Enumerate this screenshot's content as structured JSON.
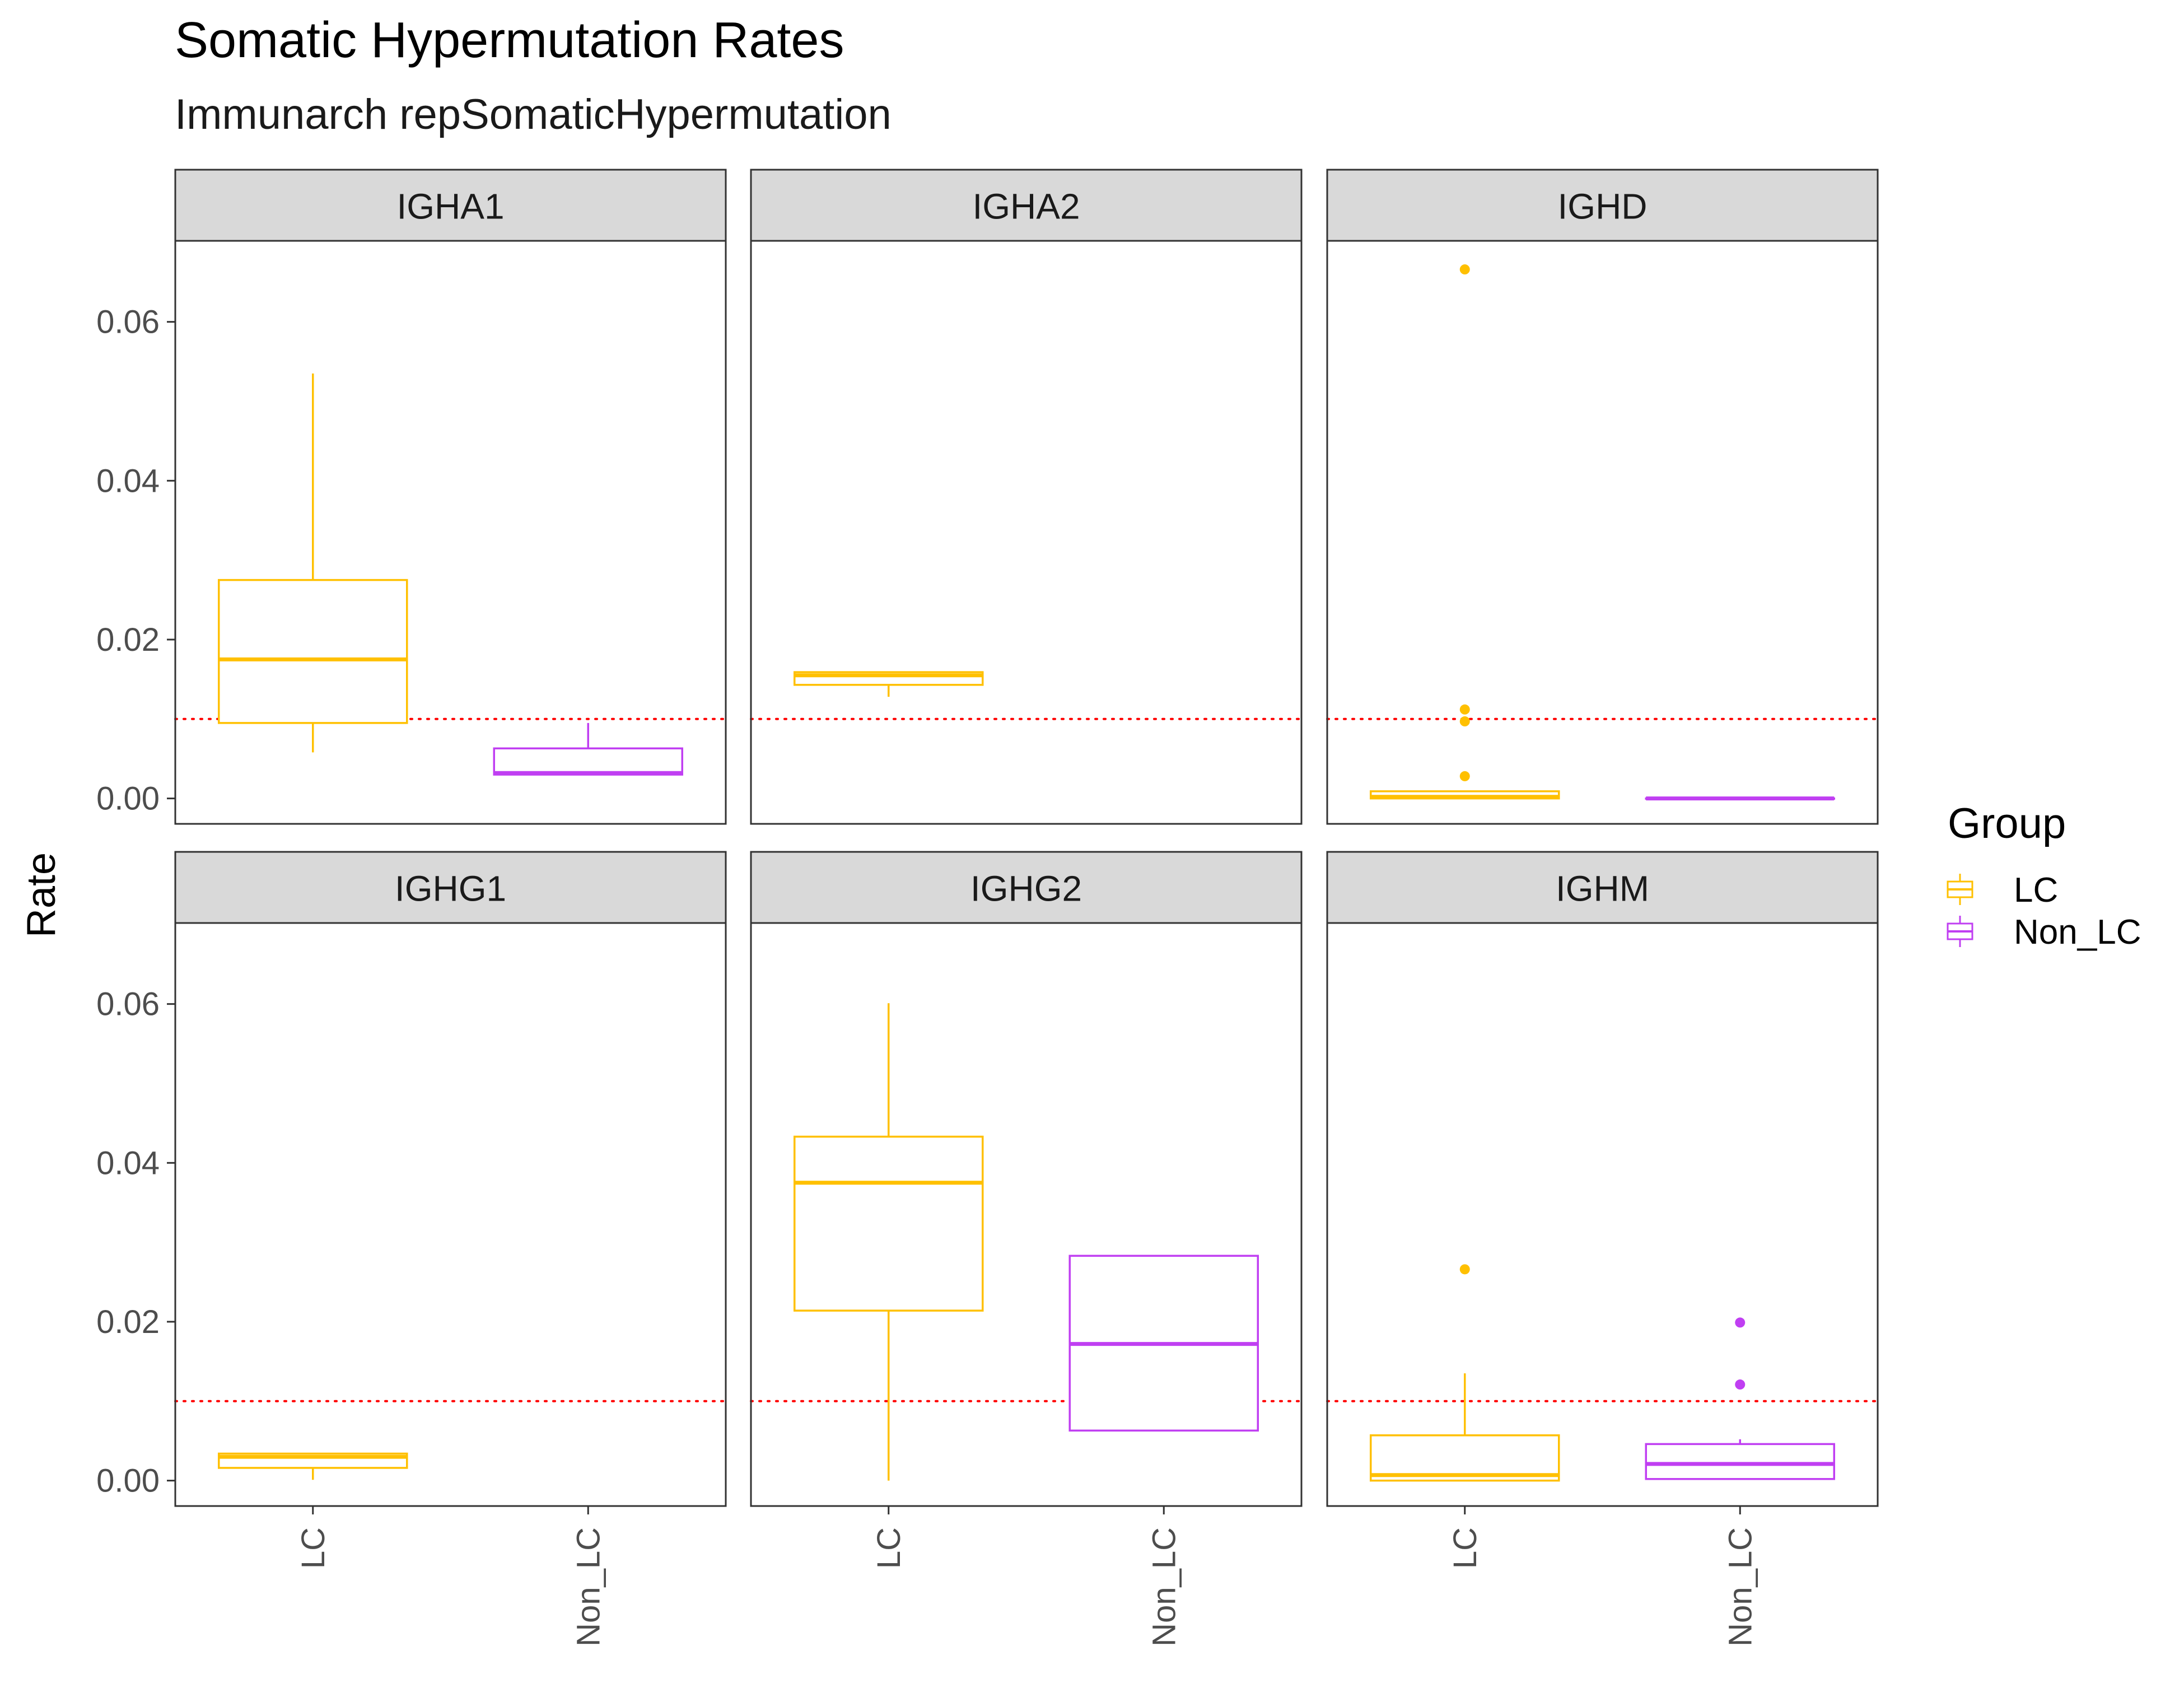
{
  "chart_data": {
    "type": "boxplot",
    "title": "Somatic Hypermutation Rates",
    "subtitle": "Immunarch repSomaticHypermutation",
    "ylabel": "Rate",
    "xlabel": "",
    "ylim": [
      -0.0032,
      0.0702
    ],
    "y_ticks": [
      0,
      0.02,
      0.04,
      0.06
    ],
    "y_tick_labels": [
      "0.00",
      "0.02",
      "0.04",
      "0.06"
    ],
    "categories": [
      "LC",
      "Non_LC"
    ],
    "reference_line": {
      "value": 0.01,
      "color": "#ff0000",
      "style": "dotted"
    },
    "legend": {
      "title": "Group",
      "placement": "right",
      "items": [
        {
          "label": "LC",
          "color": "#FFC000"
        },
        {
          "label": "Non_LC",
          "color": "#C03FF2"
        }
      ]
    },
    "colors": {
      "LC": "#FFC000",
      "Non_LC": "#C03FF2"
    },
    "grid": false,
    "facets": [
      {
        "name": "IGHA1",
        "boxes": [
          {
            "group": "LC",
            "whisker_low": 0.0058,
            "q1": 0.0095,
            "median": 0.0175,
            "q3": 0.0275,
            "whisker_high": 0.0535,
            "outliers": []
          },
          {
            "group": "Non_LC",
            "whisker_low": 0.003,
            "q1": 0.003,
            "median": 0.0032,
            "q3": 0.0063,
            "whisker_high": 0.0095,
            "outliers": []
          }
        ]
      },
      {
        "name": "IGHA2",
        "boxes": [
          {
            "group": "LC",
            "whisker_low": 0.0128,
            "q1": 0.0143,
            "median": 0.0155,
            "q3": 0.0159,
            "whisker_high": 0.016,
            "outliers": []
          }
        ]
      },
      {
        "name": "IGHD",
        "boxes": [
          {
            "group": "LC",
            "whisker_low": 0.0,
            "q1": 0.0,
            "median": 0.0002,
            "q3": 0.0009,
            "whisker_high": 0.0009,
            "outliers": [
              0.0028,
              0.0097,
              0.0112,
              0.0666
            ]
          },
          {
            "group": "Non_LC",
            "whisker_low": 0.0,
            "q1": 0.0,
            "median": 0.0,
            "q3": 0.0,
            "whisker_high": 0.0,
            "outliers": []
          }
        ]
      },
      {
        "name": "IGHG1",
        "boxes": [
          {
            "group": "LC",
            "whisker_low": 0.0001,
            "q1": 0.0016,
            "median": 0.003,
            "q3": 0.0034,
            "whisker_high": 0.0034,
            "outliers": []
          }
        ]
      },
      {
        "name": "IGHG2",
        "boxes": [
          {
            "group": "LC",
            "whisker_low": 0.0,
            "q1": 0.0214,
            "median": 0.0375,
            "q3": 0.0433,
            "whisker_high": 0.0601,
            "outliers": []
          },
          {
            "group": "Non_LC",
            "whisker_low": 0.0063,
            "q1": 0.0063,
            "median": 0.0172,
            "q3": 0.0283,
            "whisker_high": 0.0283,
            "outliers": []
          }
        ]
      },
      {
        "name": "IGHM",
        "boxes": [
          {
            "group": "LC",
            "whisker_low": 0.0,
            "q1": 0.0,
            "median": 0.0007,
            "q3": 0.0057,
            "whisker_high": 0.0135,
            "outliers": [
              0.0266
            ]
          },
          {
            "group": "Non_LC",
            "whisker_low": 0.0002,
            "q1": 0.0002,
            "median": 0.0021,
            "q3": 0.0046,
            "whisker_high": 0.0052,
            "outliers": [
              0.0121,
              0.0199
            ]
          }
        ]
      }
    ]
  }
}
